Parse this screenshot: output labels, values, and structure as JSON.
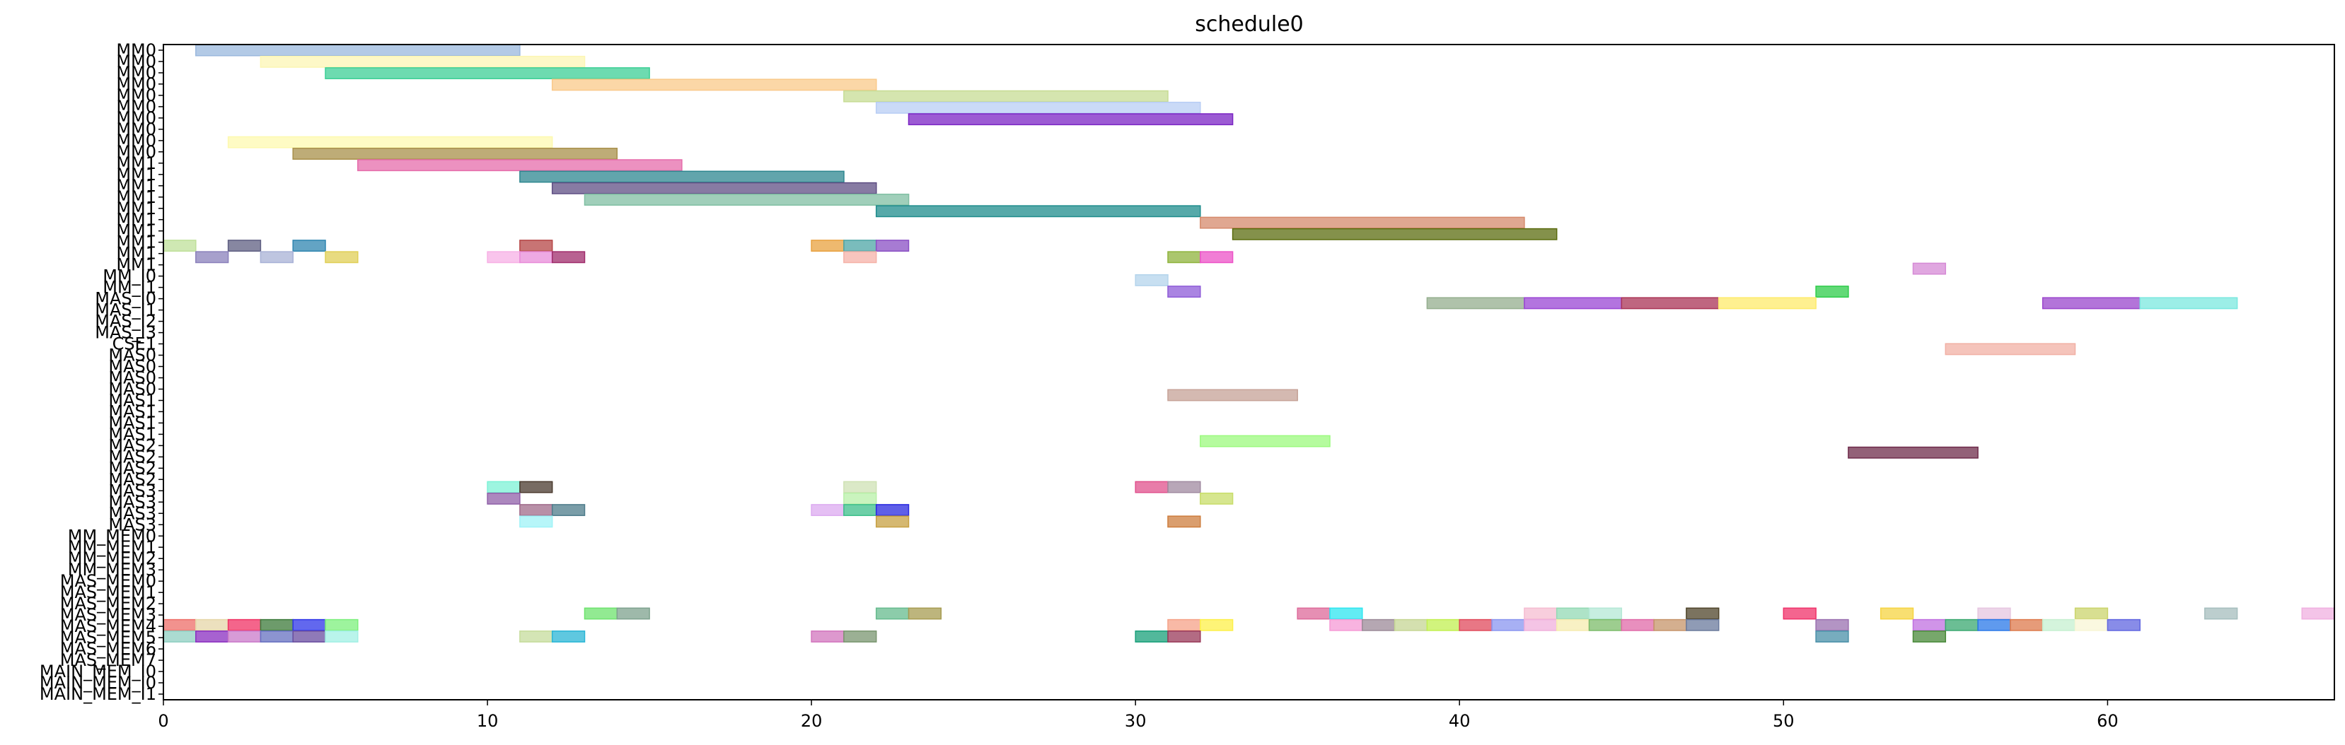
{
  "chart_data": {
    "type": "gantt",
    "title": "schedule0",
    "xlabel": "",
    "ylabel": "",
    "xlim": [
      0,
      67
    ],
    "xticks": [
      0,
      10,
      20,
      30,
      40,
      50,
      60
    ],
    "grid": false,
    "rows": [
      "MM0",
      "MM0",
      "MM0",
      "MM0",
      "MM0",
      "MM0",
      "MM0",
      "MM0",
      "MM0",
      "MM0",
      "MM1",
      "MM1",
      "MM1",
      "MM1",
      "MM1",
      "MM1",
      "MM1",
      "MM1",
      "MM1",
      "MM1",
      "MM_I0",
      "MM_I1",
      "MAS_I0",
      "MAS_I1",
      "MAS_I2",
      "MAS_I3",
      "CSE1",
      "MAS0",
      "MAS0",
      "MAS0",
      "MAS0",
      "MAS1",
      "MAS1",
      "MAS1",
      "MAS1",
      "MAS2",
      "MAS2",
      "MAS2",
      "MAS2",
      "MAS3",
      "MAS3",
      "MAS3",
      "MAS3",
      "MM_MEM0",
      "MM_MEM1",
      "MM_MEM2",
      "MM_MEM3",
      "MAS_MEM0",
      "MAS_MEM1",
      "MAS_MEM2",
      "MAS_MEM3",
      "MAS_MEM4",
      "MAS_MEM5",
      "MAS_MEM6",
      "MAS_MEM7",
      "MAIN_MEM_I0",
      "MAIN_MEM_I1"
    ],
    "row_labels_drawn": [
      "MM0",
      "MM0",
      "MM0",
      "MM0",
      "MM0",
      "MM0",
      "MM0",
      "MM0",
      "MM0",
      "MM0",
      "MM1",
      "MM1",
      "MM1",
      "MM1",
      "MM1",
      "MM1",
      "MM1",
      "MM1",
      "MM1",
      "MM1",
      "MM_I0",
      "MM_I1",
      "MAS_I0",
      "MAS_I1",
      "MAS_I2",
      "MAS_I3",
      "CSE1",
      "MAS0",
      "MAS0",
      "MAS0",
      "MAS0",
      "MAS1",
      "MAS1",
      "MAS1",
      "MAS1",
      "MAS2",
      "MAS2",
      "MAS2",
      "MAS2",
      "MAS3",
      "MAS3",
      "MAS3",
      "MAS3",
      "MM_MEM0",
      "MM_MEM1",
      "MM_MEM2",
      "MM_MEM3",
      "MAS_MEM0",
      "MAS_MEM1",
      "MAS_MEM2",
      "MAS_MEM3",
      "MAS_MEM4",
      "MAS_MEM5",
      "MAS_MEM6",
      "MAS_MEM7",
      "MAIN_MEM_I0",
      "MAIN_MEM_I0",
      "MAIN_MEM_I1"
    ],
    "bars": [
      {
        "row": 0,
        "start": 1,
        "end": 11,
        "color": "#9ab8dd"
      },
      {
        "row": 1,
        "start": 3,
        "end": 13,
        "color": "#fcf6b4"
      },
      {
        "row": 2,
        "start": 5,
        "end": 15,
        "color": "#3ccf95"
      },
      {
        "row": 3,
        "start": 12,
        "end": 22,
        "color": "#fac98a"
      },
      {
        "row": 4,
        "start": 21,
        "end": 31,
        "color": "#c7dc94"
      },
      {
        "row": 5,
        "start": 22,
        "end": 32,
        "color": "#b8cdf4"
      },
      {
        "row": 6,
        "start": 23,
        "end": 33,
        "color": "#7b24c4"
      },
      {
        "row": 8,
        "start": 2,
        "end": 12,
        "color": "#fdf9b0"
      },
      {
        "row": 9,
        "start": 4,
        "end": 14,
        "color": "#a8904a"
      },
      {
        "row": 10,
        "start": 6,
        "end": 16,
        "color": "#e56cab"
      },
      {
        "row": 11,
        "start": 11,
        "end": 21,
        "color": "#2e8790"
      },
      {
        "row": 12,
        "start": 12,
        "end": 22,
        "color": "#5f4f84"
      },
      {
        "row": 13,
        "start": 13,
        "end": 23,
        "color": "#80bfa3"
      },
      {
        "row": 14,
        "start": 22,
        "end": 32,
        "color": "#1e8c8c"
      },
      {
        "row": 15,
        "start": 32,
        "end": 42,
        "color": "#d68a6c"
      },
      {
        "row": 16,
        "start": 33,
        "end": 43,
        "color": "#5b6c0f"
      },
      {
        "row": 17,
        "start": 0,
        "end": 1,
        "color": "#bfe09a"
      },
      {
        "row": 17,
        "start": 2,
        "end": 3,
        "color": "#5f5f82"
      },
      {
        "row": 17,
        "start": 4,
        "end": 5,
        "color": "#2f86b0"
      },
      {
        "row": 17,
        "start": 11,
        "end": 12,
        "color": "#b64545"
      },
      {
        "row": 17,
        "start": 20,
        "end": 21,
        "color": "#e8a13f"
      },
      {
        "row": 17,
        "start": 21,
        "end": 22,
        "color": "#4ea5a5"
      },
      {
        "row": 17,
        "start": 22,
        "end": 23,
        "color": "#8a4fc4"
      },
      {
        "row": 18,
        "start": 1,
        "end": 2,
        "color": "#8a80bb"
      },
      {
        "row": 18,
        "start": 3,
        "end": 4,
        "color": "#a8b1d6"
      },
      {
        "row": 18,
        "start": 5,
        "end": 6,
        "color": "#e0cf56"
      },
      {
        "row": 18,
        "start": 10,
        "end": 11,
        "color": "#f7b0e5"
      },
      {
        "row": 18,
        "start": 11,
        "end": 12,
        "color": "#e88cd9"
      },
      {
        "row": 18,
        "start": 12,
        "end": 13,
        "color": "#a02c6c"
      },
      {
        "row": 18,
        "start": 21,
        "end": 22,
        "color": "#f5b2a8"
      },
      {
        "row": 18,
        "start": 31,
        "end": 32,
        "color": "#8fb33c"
      },
      {
        "row": 18,
        "start": 32,
        "end": 33,
        "color": "#ec52c7"
      },
      {
        "row": 19,
        "start": 54,
        "end": 55,
        "color": "#d68ad6"
      },
      {
        "row": 20,
        "start": 30,
        "end": 31,
        "color": "#b4d4ec"
      },
      {
        "row": 21,
        "start": 51,
        "end": 52,
        "color": "#2ecc4a"
      },
      {
        "row": 21,
        "start": 31,
        "end": 32,
        "color": "#8e5bd8"
      },
      {
        "row": 22,
        "start": 39,
        "end": 42,
        "color": "#94ae8e"
      },
      {
        "row": 22,
        "start": 42,
        "end": 45,
        "color": "#9a45d4"
      },
      {
        "row": 22,
        "start": 45,
        "end": 48,
        "color": "#aa3355"
      },
      {
        "row": 22,
        "start": 48,
        "end": 51,
        "color": "#fdeb6b"
      },
      {
        "row": 22,
        "start": 58,
        "end": 61,
        "color": "#9a45cc"
      },
      {
        "row": 22,
        "start": 61,
        "end": 64,
        "color": "#7be8df"
      },
      {
        "row": 26,
        "start": 55,
        "end": 59,
        "color": "#f1b0a4"
      },
      {
        "row": 30,
        "start": 31,
        "end": 35,
        "color": "#c6a297"
      },
      {
        "row": 34,
        "start": 32,
        "end": 36,
        "color": "#9cfa7e"
      },
      {
        "row": 35,
        "start": 52,
        "end": 56,
        "color": "#6f2c4b"
      },
      {
        "row": 38,
        "start": 10,
        "end": 11,
        "color": "#7cf2d6"
      },
      {
        "row": 38,
        "start": 11,
        "end": 12,
        "color": "#4a3a2e"
      },
      {
        "row": 38,
        "start": 21,
        "end": 22,
        "color": "#cfe2b4"
      },
      {
        "row": 38,
        "start": 30,
        "end": 31,
        "color": "#e0508c"
      },
      {
        "row": 38,
        "start": 31,
        "end": 32,
        "color": "#a08aa0"
      },
      {
        "row": 39,
        "start": 10,
        "end": 11,
        "color": "#9060a8"
      },
      {
        "row": 39,
        "start": 21,
        "end": 22,
        "color": "#b8f0a8"
      },
      {
        "row": 39,
        "start": 32,
        "end": 33,
        "color": "#c8dd6a"
      },
      {
        "row": 40,
        "start": 11,
        "end": 12,
        "color": "#a06b8a"
      },
      {
        "row": 40,
        "start": 12,
        "end": 13,
        "color": "#4e7c8b"
      },
      {
        "row": 40,
        "start": 20,
        "end": 21,
        "color": "#dcaaf0"
      },
      {
        "row": 40,
        "start": 21,
        "end": 22,
        "color": "#3cbf8a"
      },
      {
        "row": 40,
        "start": 22,
        "end": 23,
        "color": "#2a2ae0"
      },
      {
        "row": 41,
        "start": 11,
        "end": 12,
        "color": "#9ff3f7"
      },
      {
        "row": 41,
        "start": 22,
        "end": 23,
        "color": "#c7a042"
      },
      {
        "row": 41,
        "start": 31,
        "end": 32,
        "color": "#cd7d3d"
      },
      {
        "row": 49,
        "start": 13,
        "end": 14,
        "color": "#6ee36e"
      },
      {
        "row": 49,
        "start": 14,
        "end": 15,
        "color": "#7ea28e"
      },
      {
        "row": 49,
        "start": 22,
        "end": 23,
        "color": "#66bb8e"
      },
      {
        "row": 49,
        "start": 23,
        "end": 24,
        "color": "#a79c52"
      },
      {
        "row": 49,
        "start": 35,
        "end": 36,
        "color": "#dd6a9a"
      },
      {
        "row": 49,
        "start": 36,
        "end": 37,
        "color": "#2ee6f0"
      },
      {
        "row": 49,
        "start": 42,
        "end": 43,
        "color": "#f5bdd2"
      },
      {
        "row": 49,
        "start": 43,
        "end": 44,
        "color": "#93d9b4"
      },
      {
        "row": 49,
        "start": 44,
        "end": 45,
        "color": "#b4e8d6"
      },
      {
        "row": 49,
        "start": 47,
        "end": 48,
        "color": "#4f442a"
      },
      {
        "row": 49,
        "start": 50,
        "end": 51,
        "color": "#f0326a"
      },
      {
        "row": 49,
        "start": 53,
        "end": 54,
        "color": "#f6d442"
      },
      {
        "row": 49,
        "start": 56,
        "end": 57,
        "color": "#e6c6e0"
      },
      {
        "row": 49,
        "start": 59,
        "end": 60,
        "color": "#cbd46c"
      },
      {
        "row": 49,
        "start": 63,
        "end": 64,
        "color": "#a6bebe"
      },
      {
        "row": 49,
        "start": 66,
        "end": 67,
        "color": "#f0b0e0"
      },
      {
        "row": 50,
        "start": 0,
        "end": 1,
        "color": "#ee6e68"
      },
      {
        "row": 50,
        "start": 1,
        "end": 2,
        "color": "#e6d6a8"
      },
      {
        "row": 50,
        "start": 2,
        "end": 3,
        "color": "#f03264"
      },
      {
        "row": 50,
        "start": 3,
        "end": 4,
        "color": "#3c7a3a"
      },
      {
        "row": 50,
        "start": 4,
        "end": 5,
        "color": "#2e36e8"
      },
      {
        "row": 50,
        "start": 5,
        "end": 6,
        "color": "#7cf07c"
      },
      {
        "row": 50,
        "start": 31,
        "end": 32,
        "color": "#f5a288"
      },
      {
        "row": 50,
        "start": 32,
        "end": 33,
        "color": "#fdf04a"
      },
      {
        "row": 50,
        "start": 36,
        "end": 37,
        "color": "#f69ad6"
      },
      {
        "row": 50,
        "start": 37,
        "end": 38,
        "color": "#9c8a98"
      },
      {
        "row": 50,
        "start": 38,
        "end": 39,
        "color": "#c6d694"
      },
      {
        "row": 50,
        "start": 39,
        "end": 40,
        "color": "#c2f052"
      },
      {
        "row": 50,
        "start": 40,
        "end": 41,
        "color": "#e04a5c"
      },
      {
        "row": 50,
        "start": 41,
        "end": 42,
        "color": "#8a96f0"
      },
      {
        "row": 50,
        "start": 42,
        "end": 43,
        "color": "#f0b0dc"
      },
      {
        "row": 50,
        "start": 43,
        "end": 44,
        "color": "#f6ecb0"
      },
      {
        "row": 50,
        "start": 44,
        "end": 45,
        "color": "#7cbc6a"
      },
      {
        "row": 50,
        "start": 45,
        "end": 46,
        "color": "#e06aa8"
      },
      {
        "row": 50,
        "start": 46,
        "end": 47,
        "color": "#c6946a"
      },
      {
        "row": 50,
        "start": 47,
        "end": 48,
        "color": "#6a7a9c"
      },
      {
        "row": 50,
        "start": 51,
        "end": 52,
        "color": "#9a70b0"
      },
      {
        "row": 50,
        "start": 54,
        "end": 55,
        "color": "#c070e0"
      },
      {
        "row": 50,
        "start": 55,
        "end": 56,
        "color": "#3aa870"
      },
      {
        "row": 50,
        "start": 56,
        "end": 57,
        "color": "#2a78e8"
      },
      {
        "row": 50,
        "start": 57,
        "end": 58,
        "color": "#dd7a4c"
      },
      {
        "row": 50,
        "start": 58,
        "end": 59,
        "color": "#c6f0d0"
      },
      {
        "row": 50,
        "start": 59,
        "end": 60,
        "color": "#f8f6d6"
      },
      {
        "row": 50,
        "start": 60,
        "end": 61,
        "color": "#6066e0"
      },
      {
        "row": 51,
        "start": 0,
        "end": 1,
        "color": "#8fcfc2"
      },
      {
        "row": 51,
        "start": 1,
        "end": 2,
        "color": "#8a2ec0"
      },
      {
        "row": 51,
        "start": 2,
        "end": 3,
        "color": "#c97ac9"
      },
      {
        "row": 51,
        "start": 3,
        "end": 4,
        "color": "#6670c0"
      },
      {
        "row": 51,
        "start": 4,
        "end": 5,
        "color": "#6a4ea0"
      },
      {
        "row": 51,
        "start": 5,
        "end": 6,
        "color": "#a2f0e4"
      },
      {
        "row": 51,
        "start": 11,
        "end": 12,
        "color": "#c6dc9c"
      },
      {
        "row": 51,
        "start": 12,
        "end": 13,
        "color": "#2ab6d6"
      },
      {
        "row": 51,
        "start": 20,
        "end": 21,
        "color": "#d276be"
      },
      {
        "row": 51,
        "start": 21,
        "end": 22,
        "color": "#7a9670"
      },
      {
        "row": 51,
        "start": 30,
        "end": 31,
        "color": "#18a07a"
      },
      {
        "row": 51,
        "start": 31,
        "end": 32,
        "color": "#9a3a5a"
      },
      {
        "row": 51,
        "start": 51,
        "end": 52,
        "color": "#4a90a8"
      },
      {
        "row": 51,
        "start": 54,
        "end": 55,
        "color": "#4a8a3a"
      }
    ]
  }
}
